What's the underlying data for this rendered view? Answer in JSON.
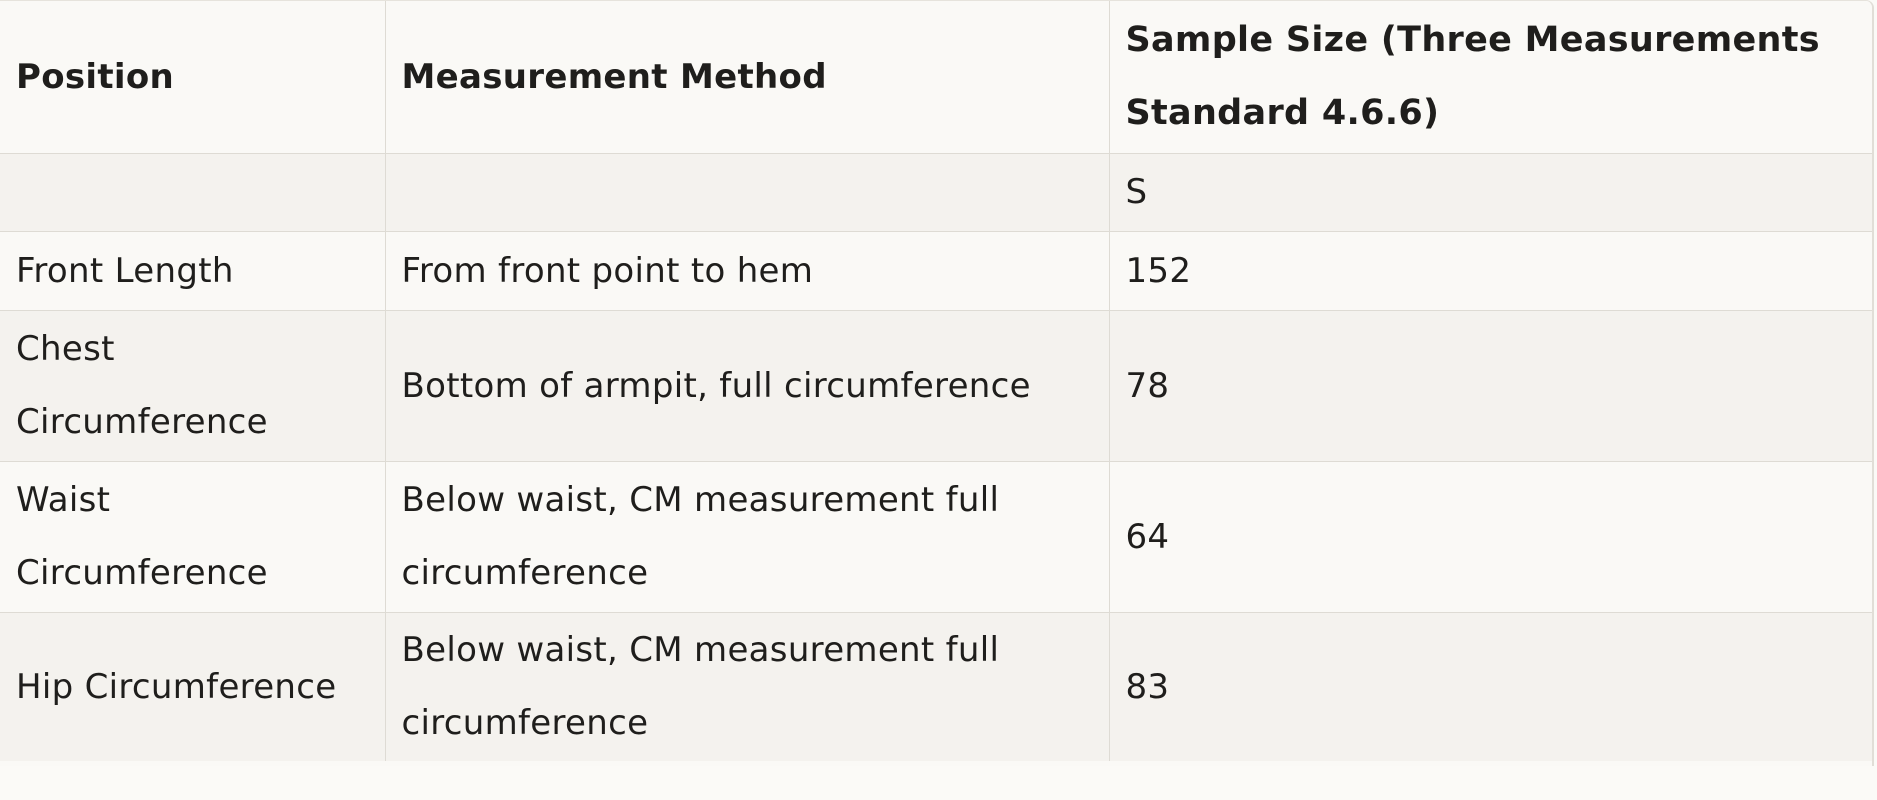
{
  "table": {
    "headers": {
      "position": "Position",
      "method": "Measurement Method",
      "sample": "Sample Size (Three Measurements Standard 4.6.6)"
    },
    "subheader": {
      "position": "",
      "method": "",
      "sample": "S"
    },
    "rows": [
      {
        "position": "Front Length",
        "method": "From front point to hem",
        "value": "152"
      },
      {
        "position": "Chest Circumference",
        "method": "Bottom of armpit, full circumference",
        "value": "78"
      },
      {
        "position": "Waist Circumference",
        "method": "Below waist, CM measurement full circumference",
        "value": "64"
      },
      {
        "position": "Hip Circumference",
        "method": "Below waist, CM measurement full circumference",
        "value": "83"
      }
    ]
  }
}
